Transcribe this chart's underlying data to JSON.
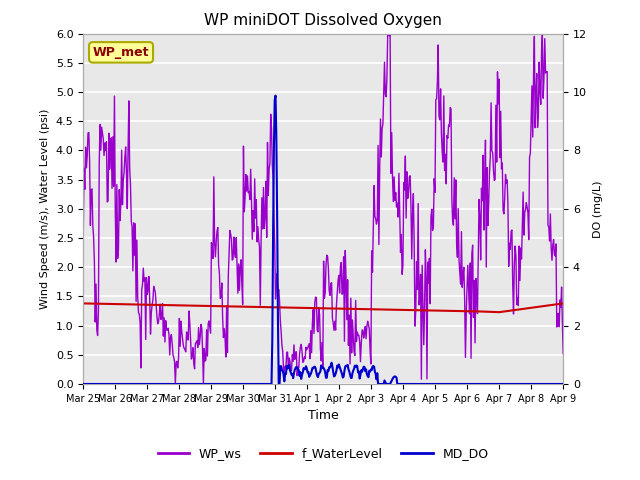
{
  "title": "WP miniDOT Dissolved Oxygen",
  "xlabel": "Time",
  "ylabel_left": "Wind Speed (m/s), Water Level (psi)",
  "ylabel_right": "DO (mg/L)",
  "annotation_text": "WP_met",
  "annotation_color": "#8B0000",
  "annotation_bg": "#FFFF99",
  "annotation_edge": "#AAAA00",
  "ylim_left": [
    0,
    6.0
  ],
  "ylim_right": [
    0,
    12
  ],
  "yticks_left": [
    0.0,
    0.5,
    1.0,
    1.5,
    2.0,
    2.5,
    3.0,
    3.5,
    4.0,
    4.5,
    5.0,
    5.5,
    6.0
  ],
  "yticks_right": [
    0,
    2,
    4,
    6,
    8,
    10,
    12
  ],
  "xtick_labels": [
    "Mar 25",
    "Mar 26",
    "Mar 27",
    "Mar 28",
    "Mar 29",
    "Mar 30",
    "Mar 31",
    "Apr 1",
    "Apr 2",
    "Apr 3",
    "Apr 4",
    "Apr 5",
    "Apr 6",
    "Apr 7",
    "Apr 8",
    "Apr 9"
  ],
  "legend_labels": [
    "WP_ws",
    "f_WaterLevel",
    "MD_DO"
  ],
  "ws_color": "#9900CC",
  "wl_color": "#CC0000",
  "do_color": "#0000CC",
  "ws_lw": 1.0,
  "wl_lw": 1.5,
  "do_lw": 1.5,
  "bg_color": "#E8E8E8",
  "grid_color": "#FFFFFF",
  "num_points": 600
}
